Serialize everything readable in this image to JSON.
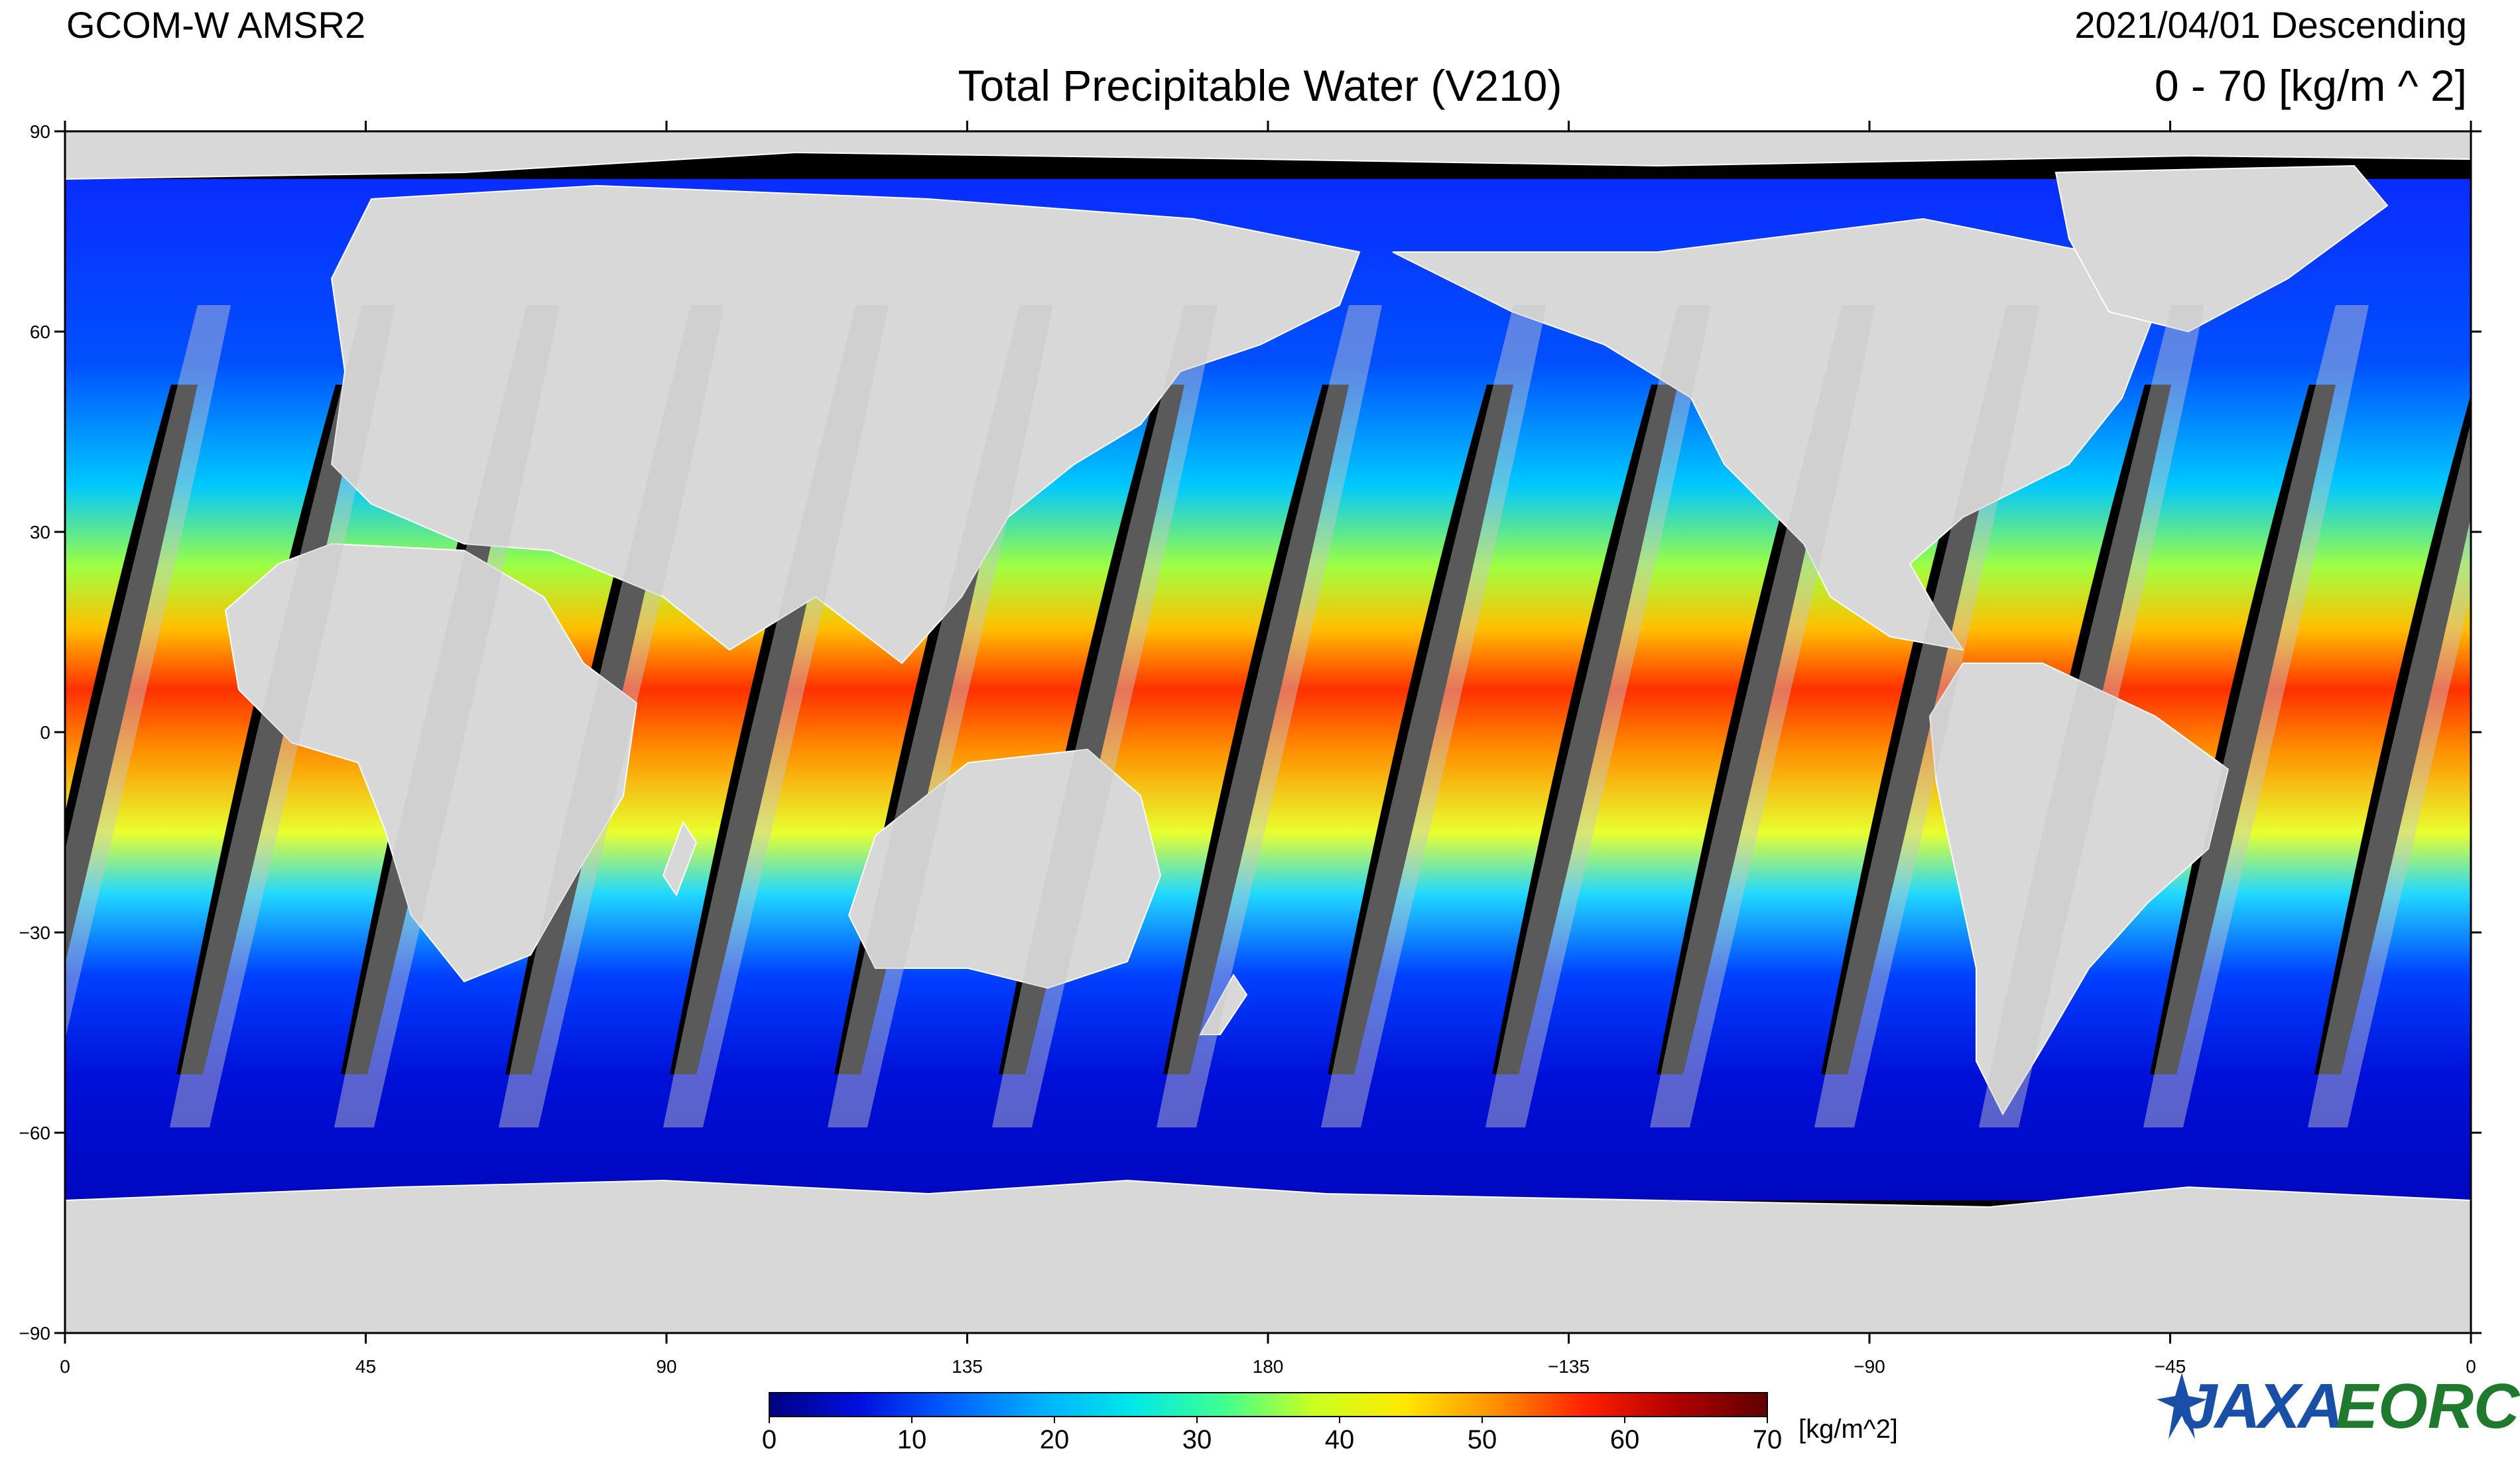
{
  "header": {
    "satellite": "GCOM-W  AMSR2",
    "date_pass": "2021/04/01  Descending",
    "title": "Total Precipitable Water (V210)",
    "range": "0  - 70 [kg/m ^ 2]"
  },
  "map": {
    "projection": "equirectangular",
    "lon_range": [
      0,
      360
    ],
    "lat_range": [
      -90,
      90
    ],
    "x_ticks": [
      "0",
      "45",
      "90",
      "135",
      "180",
      "−135",
      "−90",
      "−45",
      "0"
    ],
    "y_ticks": [
      "90",
      "60",
      "30",
      "0",
      "−30",
      "−60",
      "−90"
    ],
    "colors": {
      "land": "#d8d8d8",
      "no_data": "#000000",
      "low_water": "#0000c8",
      "high_water": "#c80000"
    }
  },
  "colorbar": {
    "ticks": [
      "0",
      "10",
      "20",
      "30",
      "40",
      "50",
      "60",
      "70"
    ],
    "unit": "[kg/m^2]",
    "stops": [
      "#000080",
      "#0010e0",
      "#0060ff",
      "#00b0ff",
      "#00e8e8",
      "#40ff90",
      "#c8ff20",
      "#ffe800",
      "#ff9000",
      "#ff2000",
      "#b00000",
      "#600000"
    ]
  },
  "logo": {
    "left": "JAXA",
    "right": "EORC"
  }
}
